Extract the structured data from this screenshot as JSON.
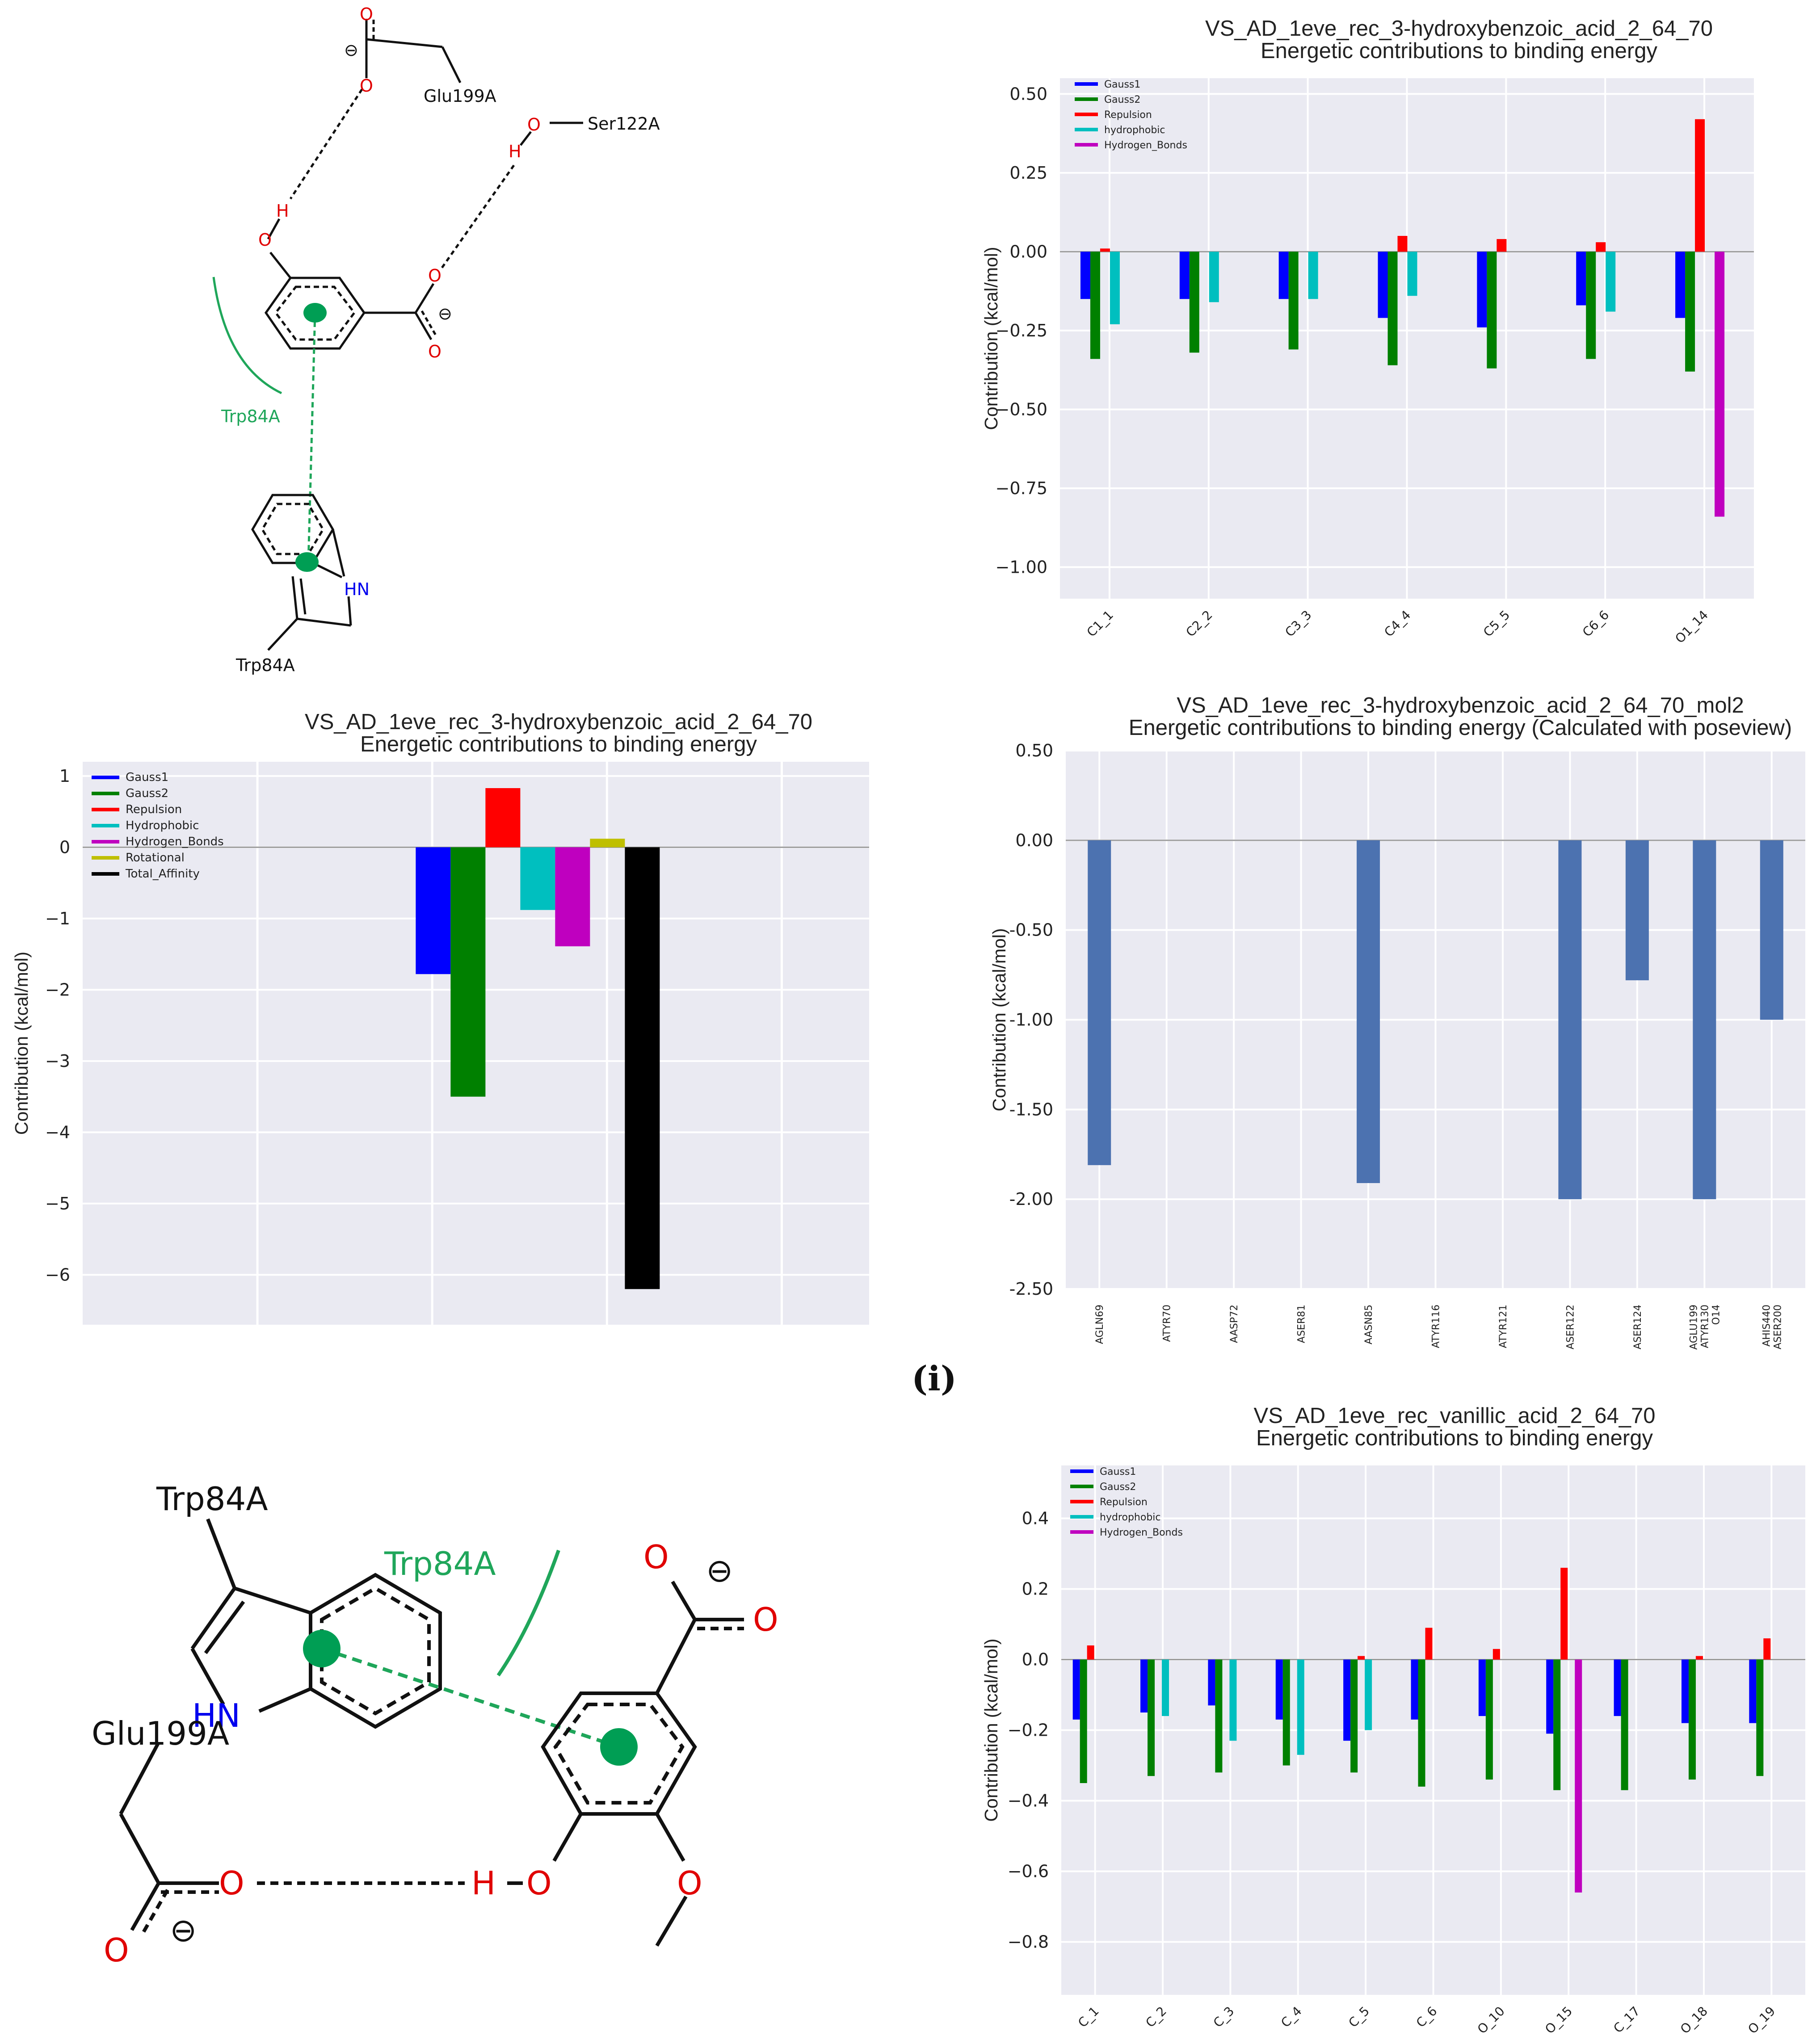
{
  "panel_label": "(i)",
  "molecule_1": {
    "labels": {
      "glu": "Glu199A",
      "ser": "Ser122A",
      "trp_arc": "Trp84A",
      "trp_res": "Trp84A",
      "hn": "HN",
      "o": "O",
      "h": "H",
      "minus": "⊖"
    }
  },
  "molecule_2": {
    "labels": {
      "trp_res": "Trp84A",
      "trp_arc": "Trp84A",
      "glu": "Glu199A",
      "hn": "HN",
      "o": "O",
      "h": "H",
      "minus": "⊖"
    }
  },
  "colors": {
    "gauss1": "#0000ff",
    "gauss2": "#008000",
    "repulsion": "#ff0000",
    "hydrophobic": "#00bfbf",
    "hbond": "#bf00bf",
    "rotational": "#bfbf00",
    "total": "#000000",
    "poseview_bar": "#4c72b0",
    "plot_bg": "#eaeaf2",
    "interaction_green": "#009e54"
  },
  "chart_data": [
    {
      "id": "chart_a",
      "type": "bar",
      "title": "VS_AD_1eve_rec_3-hydroxybenzoic_acid_2_64_70",
      "subtitle": "Energetic contributions to binding energy",
      "xlabel": "",
      "ylabel": "Contribution (kcal/mol)",
      "ylim": [
        -1.1,
        0.55
      ],
      "yticks": [
        0.5,
        0.25,
        0.0,
        -0.25,
        -0.5,
        -0.75,
        -1.0
      ],
      "ytick_labels": [
        "0.50",
        "0.25",
        "0.00",
        "−0.25",
        "−0.50",
        "−0.75",
        "−1.00"
      ],
      "legend_position": "top-left",
      "categories": [
        "C1_1",
        "C2_2",
        "C3_3",
        "C4_4",
        "C5_5",
        "C6_6",
        "O1_14"
      ],
      "series": [
        {
          "name": "Gauss1",
          "color": "#0000ff",
          "values": [
            -0.15,
            -0.15,
            -0.15,
            -0.21,
            -0.24,
            -0.17,
            -0.21
          ]
        },
        {
          "name": "Gauss2",
          "color": "#008000",
          "values": [
            -0.34,
            -0.32,
            -0.31,
            -0.36,
            -0.37,
            -0.34,
            -0.38
          ]
        },
        {
          "name": "Repulsion",
          "color": "#ff0000",
          "values": [
            0.01,
            0.0,
            0.0,
            0.05,
            0.04,
            0.03,
            0.42
          ]
        },
        {
          "name": "hydrophobic",
          "color": "#00bfbf",
          "values": [
            -0.23,
            -0.16,
            -0.15,
            -0.14,
            0.0,
            -0.19,
            0.0
          ]
        },
        {
          "name": "Hydrogen_Bonds",
          "color": "#bf00bf",
          "values": [
            0.0,
            0.0,
            0.0,
            0.0,
            0.0,
            0.0,
            -0.84
          ]
        }
      ]
    },
    {
      "id": "chart_b",
      "type": "bar",
      "title": "VS_AD_1eve_rec_3-hydroxybenzoic_acid_2_64_70",
      "subtitle": "Energetic contributions to binding energy",
      "xlabel": "",
      "ylabel": "Contribution (kcal/mol)",
      "ylim": [
        -6.7,
        1.2
      ],
      "yticks": [
        1,
        0,
        -1,
        -2,
        -3,
        -4,
        -5,
        -6
      ],
      "ytick_labels": [
        "1",
        "0",
        "−1",
        "−2",
        "−3",
        "−4",
        "−5",
        "−6"
      ],
      "legend_position": "top-left",
      "categories": [
        "Gauss1",
        "Gauss2",
        "Repulsion",
        "Hydrophobic",
        "Hydrogen_Bonds",
        "Rotational",
        "Total_Affinity"
      ],
      "values": [
        -1.78,
        -3.5,
        0.83,
        -0.88,
        -1.39,
        0.12,
        -6.2
      ],
      "colors": [
        "#0000ff",
        "#008000",
        "#ff0000",
        "#00bfbf",
        "#bf00bf",
        "#bfbf00",
        "#000000"
      ]
    },
    {
      "id": "chart_c",
      "type": "bar",
      "title": "VS_AD_1eve_rec_3-hydroxybenzoic_acid_2_64_70_mol2",
      "subtitle": "Energetic contributions to binding energy (Calculated with poseview)",
      "xlabel": "",
      "ylabel": "Contribution (kcal/mol)",
      "ylim": [
        -2.5,
        0.5
      ],
      "yticks": [
        0.5,
        0.0,
        -0.5,
        -1.0,
        -1.5,
        -2.0,
        -2.5
      ],
      "ytick_labels": [
        "0.50",
        "0.00",
        "-0.50",
        "-1.00",
        "-1.50",
        "-2.00",
        "-2.50"
      ],
      "categories": [
        "AGLN69",
        "ATYR70",
        "AASP72",
        "ASER81",
        "AASN85",
        "ATYR116",
        "ATYR121",
        "ASER122",
        "ASER124",
        "AGLU199\nATYR130\nO14",
        "AHIS440\nASER200"
      ],
      "values": [
        -1.81,
        0.0,
        0.0,
        0.0,
        -1.91,
        0.0,
        0.0,
        -2.0,
        -0.78,
        -2.0,
        -1.0
      ]
    },
    {
      "id": "chart_d",
      "type": "bar",
      "title": "VS_AD_1eve_rec_vanillic_acid_2_64_70",
      "subtitle": "Energetic contributions to binding energy",
      "xlabel": "",
      "ylabel": "Contribution (kcal/mol)",
      "ylim": [
        -0.95,
        0.55
      ],
      "yticks": [
        0.4,
        0.2,
        0.0,
        -0.2,
        -0.4,
        -0.6,
        -0.8
      ],
      "ytick_labels": [
        "0.4",
        "0.2",
        "0.0",
        "−0.2",
        "−0.4",
        "−0.6",
        "−0.8"
      ],
      "legend_position": "top-left",
      "categories": [
        "C_1",
        "C_2",
        "C_3",
        "C_4",
        "C_5",
        "C_6",
        "O_10",
        "O_15",
        "C_17",
        "O_18",
        "O_19"
      ],
      "series": [
        {
          "name": "Gauss1",
          "color": "#0000ff",
          "values": [
            -0.17,
            -0.15,
            -0.13,
            -0.17,
            -0.23,
            -0.17,
            -0.16,
            -0.21,
            -0.16,
            -0.18,
            -0.18
          ]
        },
        {
          "name": "Gauss2",
          "color": "#008000",
          "values": [
            -0.35,
            -0.33,
            -0.32,
            -0.3,
            -0.32,
            -0.36,
            -0.34,
            -0.37,
            -0.37,
            -0.34,
            -0.33
          ]
        },
        {
          "name": "Repulsion",
          "color": "#ff0000",
          "values": [
            0.04,
            0.0,
            0.0,
            0.0,
            0.01,
            0.09,
            0.03,
            0.26,
            0.0,
            0.01,
            0.06
          ]
        },
        {
          "name": "hydrophobic",
          "color": "#00bfbf",
          "values": [
            0.0,
            -0.16,
            -0.23,
            -0.27,
            -0.2,
            0.0,
            0.0,
            0.0,
            0.0,
            0.0,
            0.0
          ]
        },
        {
          "name": "Hydrogen_Bonds",
          "color": "#bf00bf",
          "values": [
            0.0,
            0.0,
            0.0,
            0.0,
            0.0,
            0.0,
            0.0,
            -0.66,
            0.0,
            0.0,
            0.0
          ]
        }
      ]
    }
  ]
}
